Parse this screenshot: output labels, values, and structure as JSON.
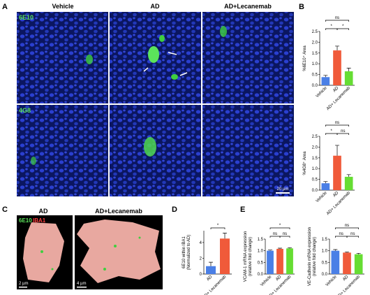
{
  "panels": {
    "a": "A",
    "b": "B",
    "c": "C",
    "d": "D",
    "e": "E"
  },
  "panel_a": {
    "columns": [
      "Vehicle",
      "AD",
      "AD+Lecanemab"
    ],
    "rows": [
      "6E10",
      "4G8"
    ],
    "scale_bar": "20 µm"
  },
  "panel_c": {
    "columns": [
      "AD",
      "AD+Lecanemab"
    ],
    "stain_green": "6E10",
    "stain_red": "IBA1",
    "scale_bars": [
      "2 µm",
      "4 µm"
    ]
  },
  "chart_data": [
    {
      "type": "bar",
      "ylabel": [
        "%6E10⁺ Area"
      ],
      "categories": [
        "Vehicle",
        "AD",
        "AD+ Lecanemab"
      ],
      "values": [
        0.38,
        1.62,
        0.65
      ],
      "errors": [
        0.08,
        0.2,
        0.15
      ],
      "colors": [
        "#4a7fe6",
        "#f05a3a",
        "#66dd33"
      ],
      "ylim": [
        0,
        2.5
      ],
      "yticks": [
        {
          "value": 0,
          "label": "0.0"
        },
        {
          "value": 0.5,
          "label": "0.5"
        },
        {
          "value": 1,
          "label": "1.0"
        },
        {
          "value": 1.5,
          "label": "1.5"
        },
        {
          "value": 2,
          "label": "2.0"
        },
        {
          "value": 2.5,
          "label": "2.5"
        }
      ],
      "brackets": [
        {
          "label": "*",
          "between": [
            "Vehicle",
            "AD"
          ]
        },
        {
          "label": "*",
          "between": [
            "AD",
            "AD+ Lecanemab"
          ]
        },
        {
          "label": "ns",
          "between": [
            "Vehicle",
            "AD+ Lecanemab"
          ]
        }
      ]
    },
    {
      "type": "bar",
      "ylabel": [
        "%4G8⁺ Area"
      ],
      "categories": [
        "Vehicle",
        "AD",
        "AD+ Lecanemab"
      ],
      "values": [
        0.32,
        1.6,
        0.62
      ],
      "errors": [
        0.08,
        0.48,
        0.1
      ],
      "colors": [
        "#4a7fe6",
        "#f05a3a",
        "#66dd33"
      ],
      "ylim": [
        0,
        2.5
      ],
      "yticks": [
        {
          "value": 0,
          "label": "0.0"
        },
        {
          "value": 0.5,
          "label": "0.5"
        },
        {
          "value": 1,
          "label": "1.0"
        },
        {
          "value": 1.5,
          "label": "1.5"
        },
        {
          "value": 2,
          "label": "2.0"
        },
        {
          "value": 2.5,
          "label": "2.5"
        }
      ],
      "brackets": [
        {
          "label": "*",
          "between": [
            "Vehicle",
            "AD"
          ]
        },
        {
          "label": "ns",
          "between": [
            "AD",
            "AD+ Lecanemab"
          ]
        },
        {
          "label": "ns",
          "between": [
            "Vehicle",
            "AD+ Lecanemab"
          ]
        }
      ]
    },
    {
      "type": "bar",
      "ylabel": [
        "6E10 within IBA1",
        "(Normalized to AD)"
      ],
      "categories": [
        "AD",
        "AD+ Lecanemab"
      ],
      "values": [
        1.0,
        4.5
      ],
      "errors": [
        0.5,
        0.7
      ],
      "colors": [
        "#4a7fe6",
        "#f05a3a"
      ],
      "ylim": [
        0,
        5.5
      ],
      "yticks": [
        0,
        2,
        4
      ],
      "brackets": [
        {
          "label": "*",
          "between": [
            "AD",
            "AD+ Lecanemab"
          ]
        }
      ]
    },
    {
      "type": "bar",
      "ylabel": [
        "VCAM-1 mRNA expression",
        "(relative fold change)"
      ],
      "categories": [
        "Vehicle",
        "AD",
        "AD+ Lecanemab"
      ],
      "values": [
        1.0,
        1.08,
        1.1
      ],
      "errors": [
        0.03,
        0.03,
        0.03
      ],
      "colors": [
        "#4a7fe6",
        "#f05a3a",
        "#66dd33"
      ],
      "ylim": [
        0,
        1.5
      ],
      "yticks": [
        {
          "value": 0,
          "label": "0.0"
        },
        {
          "value": 0.5,
          "label": "0.5"
        },
        {
          "value": 1,
          "label": "1.0"
        },
        {
          "value": 1.5,
          "label": "1.5"
        }
      ],
      "brackets": [
        {
          "label": "ns",
          "between": [
            "Vehicle",
            "AD"
          ]
        },
        {
          "label": "ns",
          "between": [
            "AD",
            "AD+ Lecanemab"
          ]
        },
        {
          "label": "*",
          "between": [
            "Vehicle",
            "AD+ Lecanemab"
          ]
        }
      ]
    },
    {
      "type": "bar",
      "ylabel": [
        "VE-Cadherin mRNA expression",
        "(relative fold change)"
      ],
      "categories": [
        "Vehicle",
        "AD",
        "AD+ Lecanemab"
      ],
      "values": [
        1.0,
        0.92,
        0.85
      ],
      "errors": [
        0.05,
        0.03,
        0.04
      ],
      "colors": [
        "#4a7fe6",
        "#f05a3a",
        "#66dd33"
      ],
      "ylim": [
        0,
        1.5
      ],
      "yticks": [
        {
          "value": 0,
          "label": "0.0"
        },
        {
          "value": 0.5,
          "label": "0.5"
        },
        {
          "value": 1,
          "label": "1.0"
        },
        {
          "value": 1.5,
          "label": "1.5"
        }
      ],
      "brackets": [
        {
          "label": "ns",
          "between": [
            "Vehicle",
            "AD"
          ]
        },
        {
          "label": "ns",
          "between": [
            "AD",
            "AD+ Lecanemab"
          ]
        },
        {
          "label": "ns",
          "between": [
            "Vehicle",
            "AD+ Lecanemab"
          ]
        }
      ]
    }
  ]
}
